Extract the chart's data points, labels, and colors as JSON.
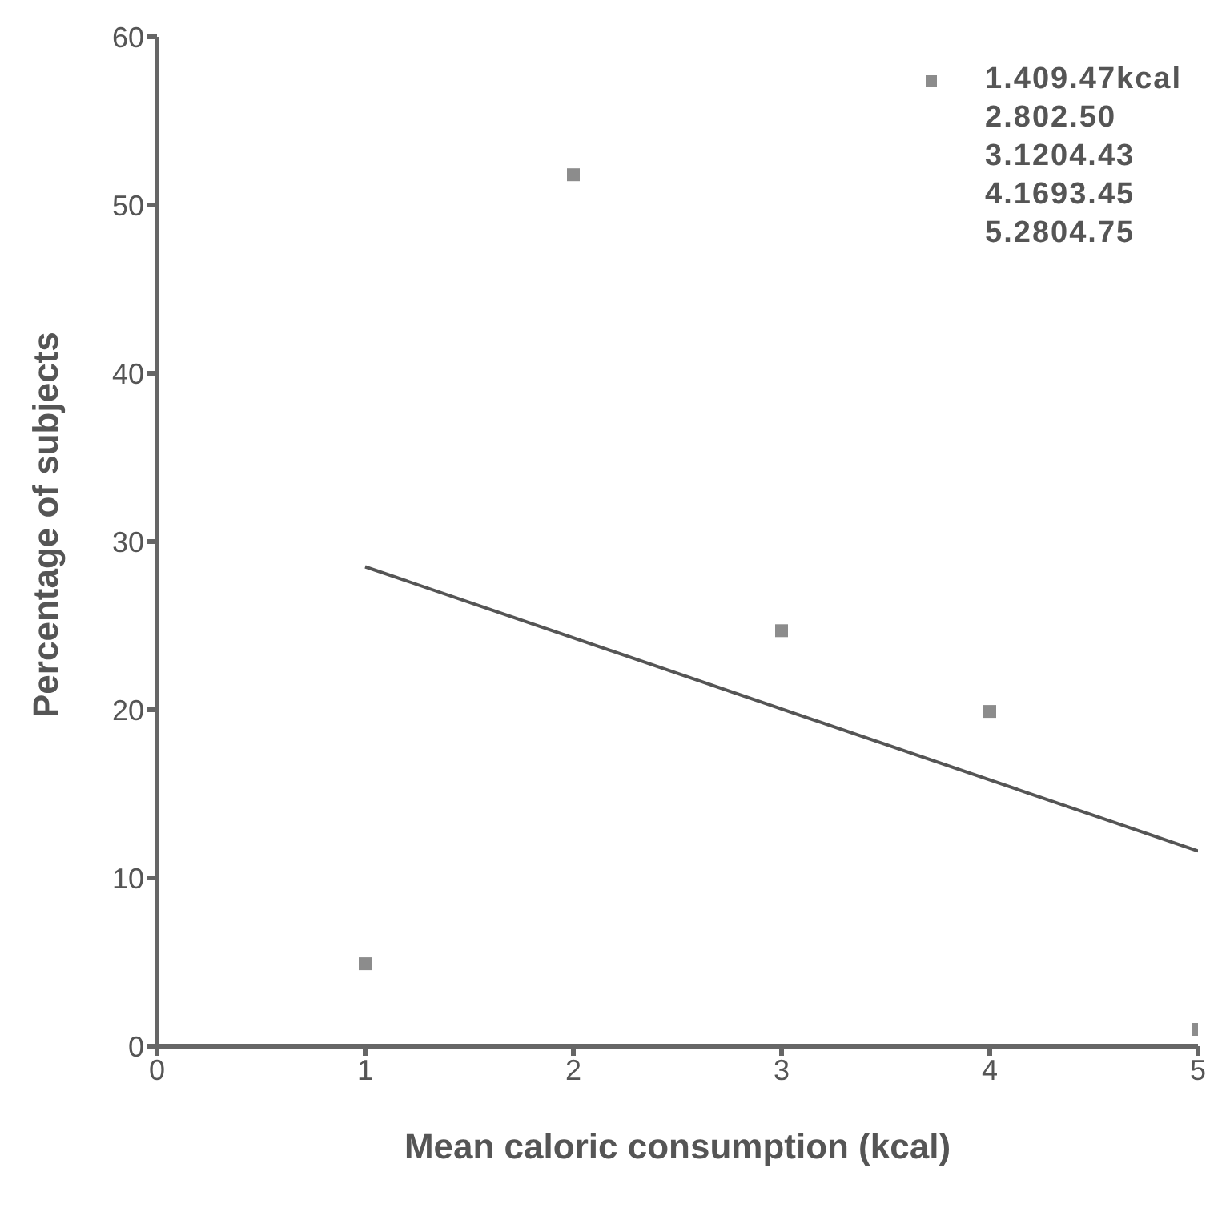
{
  "chart_data": {
    "type": "scatter",
    "xlabel": "Mean caloric consumption (kcal)",
    "ylabel": "Percentage of subjects",
    "x": [
      1,
      2,
      3,
      4,
      5
    ],
    "series": [
      {
        "name": "1.409.47kcal",
        "color": "#8c8c8c",
        "values": [
          4.9,
          51.8,
          24.7,
          19.9,
          1.0
        ],
        "marker": "square"
      },
      {
        "type": "line",
        "x": [
          1,
          5
        ],
        "color": "#555555",
        "values": [
          28.5,
          11.6
        ],
        "marker": "none"
      }
    ],
    "annotations": [
      "2.802.50",
      "3.1204.43",
      "4.1693.45",
      "5.2804.75"
    ],
    "xlim": [
      0,
      5
    ],
    "xticks": [
      0,
      1,
      2,
      3,
      4,
      5
    ],
    "ylim": [
      0,
      60
    ],
    "yticks": [
      0,
      10,
      20,
      30,
      40,
      50,
      60
    ],
    "grid": false,
    "legend": "top right"
  }
}
